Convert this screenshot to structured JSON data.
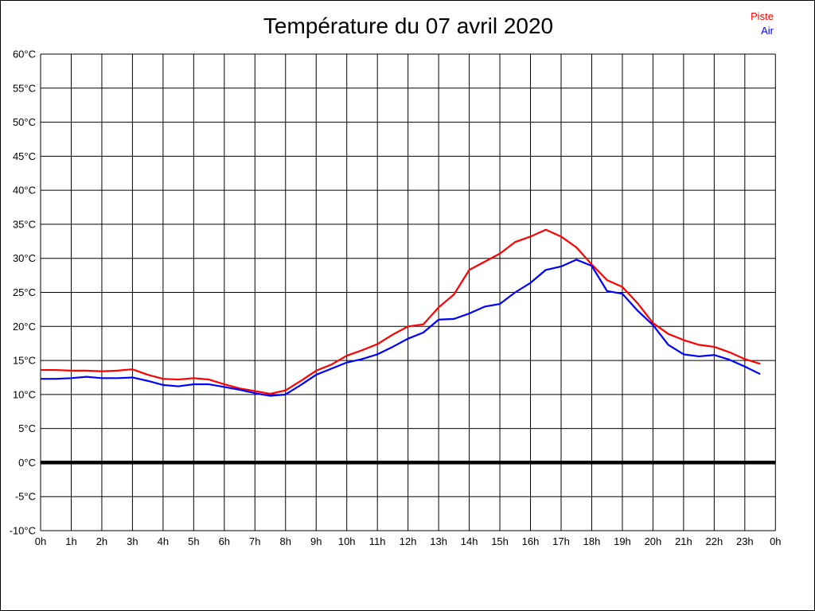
{
  "page": {
    "title": "Température du 07 avril 2020"
  },
  "legend": {
    "items": [
      {
        "label": "Piste",
        "color": "#ff0000"
      },
      {
        "label": "Air",
        "color": "#0000ff"
      }
    ]
  },
  "chart_data": {
    "type": "line",
    "title": "Température du 07 avril 2020",
    "xlabel": "",
    "ylabel": "",
    "x_unit": "hour",
    "y_unit": "°C",
    "xlim_hours": [
      0,
      24
    ],
    "ylim": [
      -10,
      60
    ],
    "y_tick_step": 5,
    "grid": true,
    "grid_color": "#000000",
    "background": "#ffffff",
    "zero_line_bold": true,
    "legend_position": "top-right",
    "x_tick_labels": [
      "0h",
      "1h",
      "2h",
      "3h",
      "4h",
      "5h",
      "6h",
      "7h",
      "8h",
      "9h",
      "10h",
      "11h",
      "12h",
      "13h",
      "14h",
      "15h",
      "16h",
      "17h",
      "18h",
      "19h",
      "20h",
      "21h",
      "22h",
      "23h",
      "0h"
    ],
    "y_tick_labels": [
      "60°C",
      "55°C",
      "50°C",
      "45°C",
      "40°C",
      "35°C",
      "30°C",
      "25°C",
      "20°C",
      "15°C",
      "10°C",
      "5°C",
      "0°C",
      "-5°C",
      "-10°C"
    ],
    "x_hours": [
      0,
      0.5,
      1,
      1.5,
      2,
      2.5,
      3,
      3.5,
      4,
      4.5,
      5,
      5.5,
      6,
      6.5,
      7,
      7.5,
      8,
      8.5,
      9,
      9.5,
      10,
      10.5,
      11,
      11.5,
      12,
      12.5,
      13,
      13.5,
      14,
      14.5,
      15,
      15.5,
      16,
      16.5,
      17,
      17.5,
      18,
      18.5,
      19,
      19.5,
      20,
      20.5,
      21,
      21.5,
      22,
      22.5,
      23,
      23.5
    ],
    "series": [
      {
        "name": "Piste",
        "color": "#ff0000",
        "values": [
          13.6,
          13.6,
          13.5,
          13.5,
          13.4,
          13.5,
          13.7,
          12.9,
          12.3,
          12.2,
          12.4,
          12.2,
          11.5,
          10.9,
          10.5,
          10.1,
          10.6,
          12.0,
          13.5,
          14.4,
          15.7,
          16.5,
          17.4,
          18.8,
          20.0,
          20.3,
          22.8,
          24.7,
          28.3,
          29.5,
          30.7,
          32.4,
          33.2,
          34.2,
          33.2,
          31.6,
          29.1,
          26.8,
          25.8,
          23.4,
          20.5,
          18.9,
          18.0,
          17.3,
          17.0,
          16.2,
          15.2,
          14.5
        ]
      },
      {
        "name": "Air",
        "color": "#0000ff",
        "values": [
          12.3,
          12.3,
          12.4,
          12.6,
          12.4,
          12.4,
          12.5,
          12.0,
          11.4,
          11.2,
          11.5,
          11.5,
          11.1,
          10.7,
          10.2,
          9.8,
          10.0,
          11.4,
          12.9,
          13.8,
          14.7,
          15.2,
          15.9,
          17.0,
          18.2,
          19.1,
          21.0,
          21.1,
          21.9,
          22.9,
          23.3,
          25.0,
          26.4,
          28.3,
          28.8,
          29.8,
          28.9,
          25.2,
          24.8,
          22.3,
          20.2,
          17.3,
          15.9,
          15.6,
          15.8,
          15.1,
          14.1,
          13.0
        ]
      }
    ]
  }
}
